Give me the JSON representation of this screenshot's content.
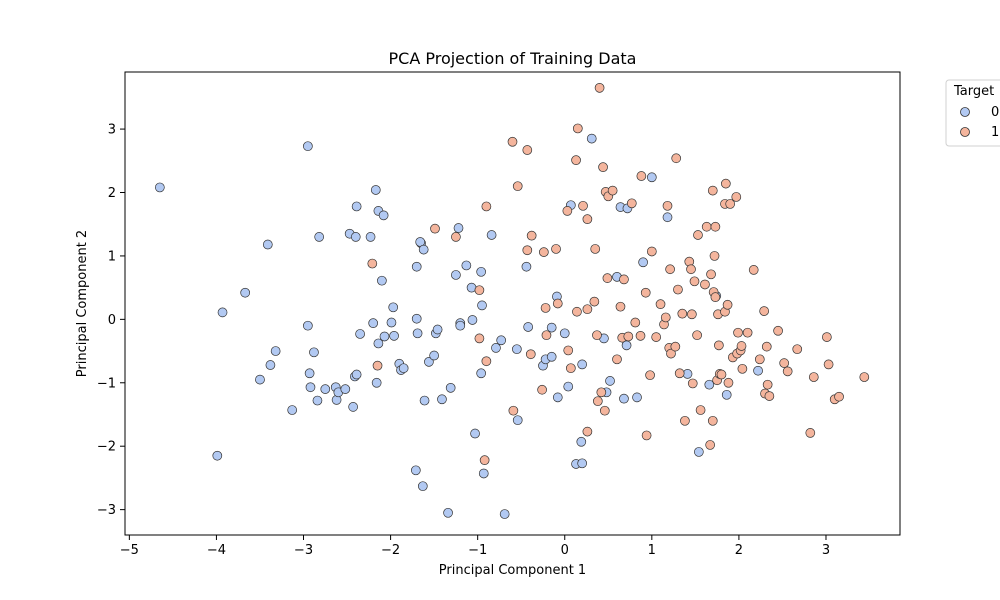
{
  "chart_data": {
    "type": "scatter",
    "title": "PCA Projection of Training Data",
    "xlabel": "Principal Component 1",
    "ylabel": "Principal Component 2",
    "xlim": [
      -5.05,
      3.85
    ],
    "ylim": [
      -3.4,
      3.9
    ],
    "xticks": [
      -5,
      -4,
      -3,
      -2,
      -1,
      0,
      1,
      2,
      3
    ],
    "yticks": [
      -3,
      -2,
      -1,
      0,
      1,
      2,
      3
    ],
    "grid": false,
    "legend": {
      "title": "Target",
      "placement": "outside-top-right"
    },
    "series": [
      {
        "name": "0",
        "color": "#b2c9f2",
        "points": [
          [
            -4.65,
            2.08
          ],
          [
            -3.93,
            0.11
          ],
          [
            -3.67,
            0.42
          ],
          [
            -3.41,
            1.18
          ],
          [
            -3.38,
            -0.72
          ],
          [
            -3.32,
            -0.5
          ],
          [
            -3.5,
            -0.95
          ],
          [
            -3.13,
            -1.43
          ],
          [
            -3.99,
            -2.15
          ],
          [
            -2.95,
            2.73
          ],
          [
            -2.82,
            1.3
          ],
          [
            -2.95,
            -0.1
          ],
          [
            -2.88,
            -0.52
          ],
          [
            -2.93,
            -0.85
          ],
          [
            -2.92,
            -1.07
          ],
          [
            -2.84,
            -1.28
          ],
          [
            -2.75,
            -1.1
          ],
          [
            -2.63,
            -1.07
          ],
          [
            -2.62,
            -1.27
          ],
          [
            -2.6,
            -1.15
          ],
          [
            -2.52,
            -1.1
          ],
          [
            -2.43,
            -1.38
          ],
          [
            -2.41,
            -0.9
          ],
          [
            -2.39,
            -0.87
          ],
          [
            -2.35,
            -0.23
          ],
          [
            -2.47,
            1.35
          ],
          [
            -2.4,
            1.3
          ],
          [
            -2.39,
            1.78
          ],
          [
            -2.23,
            1.3
          ],
          [
            -2.17,
            2.04
          ],
          [
            -2.14,
            1.71
          ],
          [
            -2.08,
            1.64
          ],
          [
            -2.1,
            0.61
          ],
          [
            -2.14,
            -0.38
          ],
          [
            -2.2,
            -0.06
          ],
          [
            -2.07,
            -0.27
          ],
          [
            -2.16,
            -1.0
          ],
          [
            -1.97,
            0.19
          ],
          [
            -1.99,
            -0.05
          ],
          [
            -1.96,
            -0.26
          ],
          [
            -1.9,
            -0.7
          ],
          [
            -1.88,
            -0.8
          ],
          [
            -1.85,
            -0.77
          ],
          [
            -1.7,
            0.01
          ],
          [
            -1.69,
            -0.22
          ],
          [
            -1.7,
            0.83
          ],
          [
            -1.65,
            1.2
          ],
          [
            -1.66,
            1.22
          ],
          [
            -1.62,
            1.1
          ],
          [
            -1.56,
            -0.67
          ],
          [
            -1.5,
            -0.57
          ],
          [
            -1.48,
            -0.22
          ],
          [
            -1.46,
            -0.16
          ],
          [
            -1.41,
            -1.26
          ],
          [
            -1.61,
            -1.28
          ],
          [
            -1.71,
            -2.38
          ],
          [
            -1.63,
            -2.63
          ],
          [
            -1.34,
            -3.05
          ],
          [
            -1.31,
            -1.08
          ],
          [
            -1.25,
            0.7
          ],
          [
            -1.22,
            1.44
          ],
          [
            -1.2,
            -0.06
          ],
          [
            -1.2,
            -0.1
          ],
          [
            -1.13,
            0.85
          ],
          [
            -1.07,
            0.5
          ],
          [
            -1.06,
            -0.01
          ],
          [
            -0.96,
            0.75
          ],
          [
            -0.95,
            0.22
          ],
          [
            -0.96,
            -0.85
          ],
          [
            -1.03,
            -1.8
          ],
          [
            -0.93,
            -2.43
          ],
          [
            -0.84,
            1.33
          ],
          [
            -0.79,
            -0.45
          ],
          [
            -0.73,
            -0.33
          ],
          [
            -0.69,
            -3.07
          ],
          [
            -0.55,
            -0.47
          ],
          [
            -0.54,
            -1.59
          ],
          [
            -0.44,
            0.83
          ],
          [
            -0.42,
            -0.12
          ],
          [
            -0.25,
            -0.73
          ],
          [
            -0.22,
            -0.63
          ],
          [
            -0.15,
            -0.13
          ],
          [
            -0.15,
            -0.59
          ],
          [
            -0.09,
            0.36
          ],
          [
            -0.08,
            -1.23
          ],
          [
            0.0,
            -0.22
          ],
          [
            0.04,
            -1.06
          ],
          [
            0.07,
            1.8
          ],
          [
            0.13,
            -2.28
          ],
          [
            0.2,
            -2.27
          ],
          [
            0.19,
            -1.93
          ],
          [
            0.2,
            -0.71
          ],
          [
            0.31,
            2.85
          ],
          [
            0.45,
            -0.3
          ],
          [
            0.48,
            -1.15
          ],
          [
            0.52,
            -0.97
          ],
          [
            0.6,
            0.67
          ],
          [
            0.64,
            1.77
          ],
          [
            0.68,
            -1.25
          ],
          [
            0.72,
            1.75
          ],
          [
            0.71,
            -0.41
          ],
          [
            0.83,
            -1.23
          ],
          [
            0.9,
            0.9
          ],
          [
            1.0,
            2.24
          ],
          [
            1.18,
            1.61
          ],
          [
            1.41,
            -0.86
          ],
          [
            1.54,
            -2.09
          ],
          [
            1.66,
            -1.03
          ],
          [
            1.74,
            0.37
          ],
          [
            1.86,
            -1.19
          ],
          [
            2.22,
            -0.81
          ]
        ]
      },
      {
        "name": "1",
        "color": "#f4b59d",
        "points": [
          [
            -2.21,
            0.88
          ],
          [
            -2.15,
            -0.73
          ],
          [
            -1.49,
            1.43
          ],
          [
            -1.25,
            1.3
          ],
          [
            -0.98,
            0.46
          ],
          [
            -0.9,
            1.78
          ],
          [
            -0.9,
            -0.66
          ],
          [
            -0.92,
            -2.22
          ],
          [
            -0.98,
            -0.3
          ],
          [
            -0.6,
            2.8
          ],
          [
            -0.54,
            2.1
          ],
          [
            -0.43,
            2.67
          ],
          [
            -0.43,
            1.09
          ],
          [
            -0.38,
            1.32
          ],
          [
            -0.39,
            -0.55
          ],
          [
            -0.59,
            -1.44
          ],
          [
            -0.26,
            -1.11
          ],
          [
            -0.24,
            1.06
          ],
          [
            -0.22,
            0.18
          ],
          [
            -0.21,
            -0.25
          ],
          [
            -0.1,
            1.11
          ],
          [
            -0.08,
            0.25
          ],
          [
            0.03,
            1.71
          ],
          [
            0.04,
            -0.49
          ],
          [
            0.07,
            -0.77
          ],
          [
            0.13,
            2.51
          ],
          [
            0.14,
            0.12
          ],
          [
            0.15,
            3.01
          ],
          [
            0.21,
            1.79
          ],
          [
            0.26,
            1.58
          ],
          [
            0.26,
            0.16
          ],
          [
            0.26,
            -1.77
          ],
          [
            0.34,
            0.28
          ],
          [
            0.35,
            1.11
          ],
          [
            0.37,
            -0.25
          ],
          [
            0.38,
            -1.29
          ],
          [
            0.42,
            -1.15
          ],
          [
            0.4,
            3.65
          ],
          [
            0.44,
            2.4
          ],
          [
            0.46,
            -1.44
          ],
          [
            0.49,
            0.65
          ],
          [
            0.47,
            2.01
          ],
          [
            0.5,
            1.94
          ],
          [
            0.55,
            2.03
          ],
          [
            0.6,
            -0.63
          ],
          [
            0.64,
            0.2
          ],
          [
            0.68,
            0.63
          ],
          [
            0.66,
            -0.29
          ],
          [
            0.73,
            -0.27
          ],
          [
            0.77,
            1.83
          ],
          [
            0.81,
            -0.05
          ],
          [
            0.88,
            2.26
          ],
          [
            0.87,
            -0.26
          ],
          [
            0.93,
            0.42
          ],
          [
            0.94,
            -1.83
          ],
          [
            0.98,
            -0.88
          ],
          [
            1.0,
            1.07
          ],
          [
            1.05,
            -0.28
          ],
          [
            1.1,
            0.24
          ],
          [
            1.14,
            -0.08
          ],
          [
            1.16,
            0.03
          ],
          [
            1.18,
            1.79
          ],
          [
            1.2,
            -0.45
          ],
          [
            1.21,
            0.79
          ],
          [
            1.22,
            -0.54
          ],
          [
            1.27,
            -0.43
          ],
          [
            1.28,
            2.54
          ],
          [
            1.3,
            0.47
          ],
          [
            1.32,
            -0.85
          ],
          [
            1.35,
            0.09
          ],
          [
            1.38,
            -1.6
          ],
          [
            1.43,
            0.91
          ],
          [
            1.45,
            0.79
          ],
          [
            1.46,
            0.08
          ],
          [
            1.47,
            -1.01
          ],
          [
            1.49,
            0.6
          ],
          [
            1.53,
            1.33
          ],
          [
            1.52,
            -0.25
          ],
          [
            1.56,
            -1.43
          ],
          [
            1.61,
            0.55
          ],
          [
            1.63,
            1.46
          ],
          [
            1.67,
            -1.98
          ],
          [
            1.68,
            0.71
          ],
          [
            1.7,
            2.03
          ],
          [
            1.7,
            -1.6
          ],
          [
            1.71,
            0.43
          ],
          [
            1.73,
            0.35
          ],
          [
            1.73,
            1.46
          ],
          [
            1.72,
            1.0
          ],
          [
            1.75,
            -0.96
          ],
          [
            1.76,
            0.08
          ],
          [
            1.77,
            -0.41
          ],
          [
            1.78,
            -0.86
          ],
          [
            1.8,
            -0.87
          ],
          [
            1.84,
            1.82
          ],
          [
            1.84,
            0.12
          ],
          [
            1.85,
            2.14
          ],
          [
            1.87,
            0.23
          ],
          [
            1.88,
            -1.0
          ],
          [
            1.9,
            1.82
          ],
          [
            1.93,
            -0.6
          ],
          [
            1.97,
            1.93
          ],
          [
            1.98,
            -0.54
          ],
          [
            1.99,
            -0.21
          ],
          [
            2.02,
            -0.49
          ],
          [
            2.03,
            -0.42
          ],
          [
            2.04,
            -0.78
          ],
          [
            2.1,
            -0.21
          ],
          [
            2.17,
            0.78
          ],
          [
            2.24,
            -0.63
          ],
          [
            2.29,
            0.13
          ],
          [
            2.3,
            -1.17
          ],
          [
            2.32,
            -0.43
          ],
          [
            2.33,
            -1.03
          ],
          [
            2.35,
            -1.21
          ],
          [
            2.45,
            -0.18
          ],
          [
            2.52,
            -0.69
          ],
          [
            2.56,
            -0.82
          ],
          [
            2.67,
            -0.47
          ],
          [
            2.82,
            -1.79
          ],
          [
            2.86,
            -0.91
          ],
          [
            3.01,
            -0.28
          ],
          [
            3.03,
            -0.71
          ],
          [
            3.1,
            -1.26
          ],
          [
            3.15,
            -1.22
          ],
          [
            3.44,
            -0.91
          ]
        ]
      }
    ]
  }
}
